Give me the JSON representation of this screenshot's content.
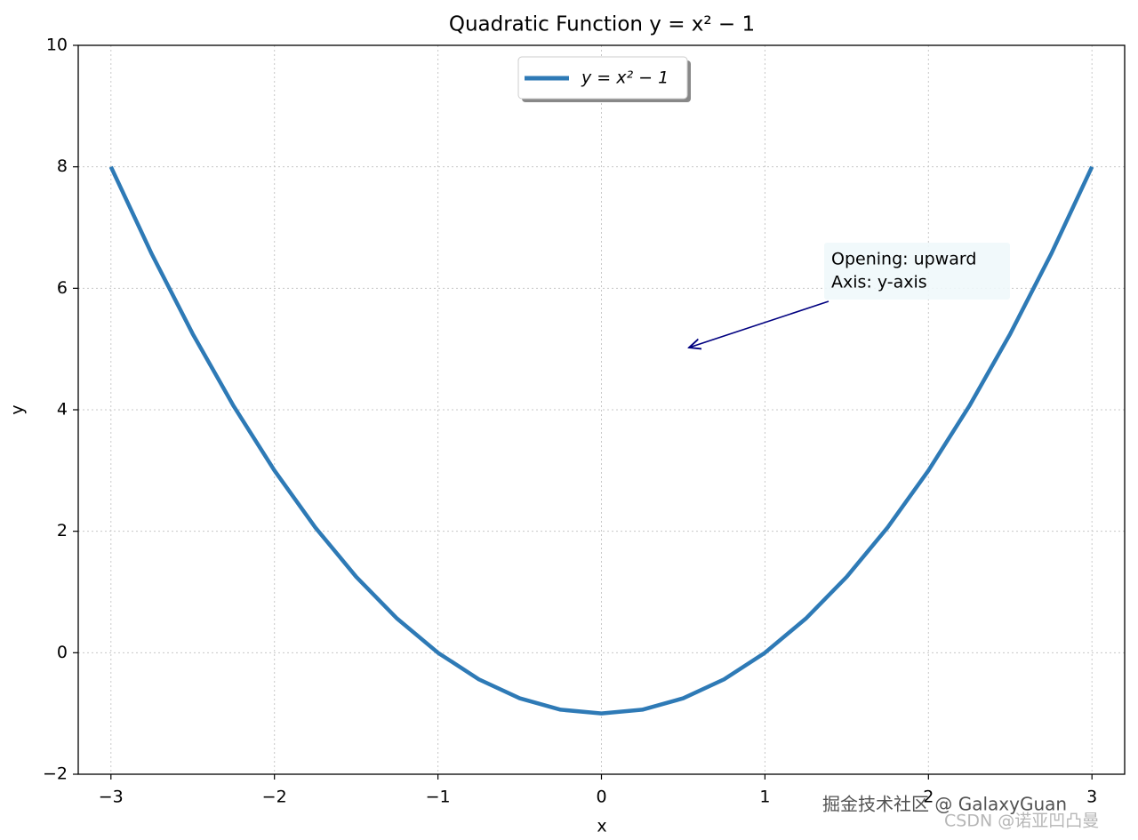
{
  "chart_data": {
    "type": "line",
    "title": "Quadratic Function y = x² − 1",
    "x_label": "x",
    "y_label": "y",
    "x": [
      -3,
      -2.75,
      -2.5,
      -2.25,
      -2,
      -1.75,
      -1.5,
      -1.25,
      -1,
      -0.75,
      -0.5,
      -0.25,
      0,
      0.25,
      0.5,
      0.75,
      1,
      1.25,
      1.5,
      1.75,
      2,
      2.25,
      2.5,
      2.75,
      3
    ],
    "series": [
      {
        "name": "y = x² − 1",
        "color": "#2e7ab6",
        "values": [
          8,
          6.5625,
          5.25,
          4.0625,
          3,
          2.0625,
          1.25,
          0.5625,
          0,
          -0.4375,
          -0.75,
          -0.9375,
          -1,
          -0.9375,
          -0.75,
          -0.4375,
          0,
          0.5625,
          1.25,
          2.0625,
          3,
          4.0625,
          5.25,
          6.5625,
          8
        ]
      }
    ],
    "xlim": [
      -3.2,
      3.2
    ],
    "ylim": [
      -2,
      10
    ],
    "xticks": [
      {
        "value": -3,
        "label": "−3"
      },
      {
        "value": -2,
        "label": "−2"
      },
      {
        "value": -1,
        "label": "−1"
      },
      0,
      1,
      2,
      3
    ],
    "yticks": [
      {
        "value": -2,
        "label": "−2"
      },
      0,
      2,
      4,
      6,
      8,
      10
    ],
    "grid": true,
    "legend": "upper center",
    "annotation": [
      "Opening: upward",
      "Axis: y-axis"
    ]
  },
  "watermarks": [
    "掘金技术社区 @ GalaxyGuan",
    "CSDN @诺亚凹凸曼"
  ]
}
